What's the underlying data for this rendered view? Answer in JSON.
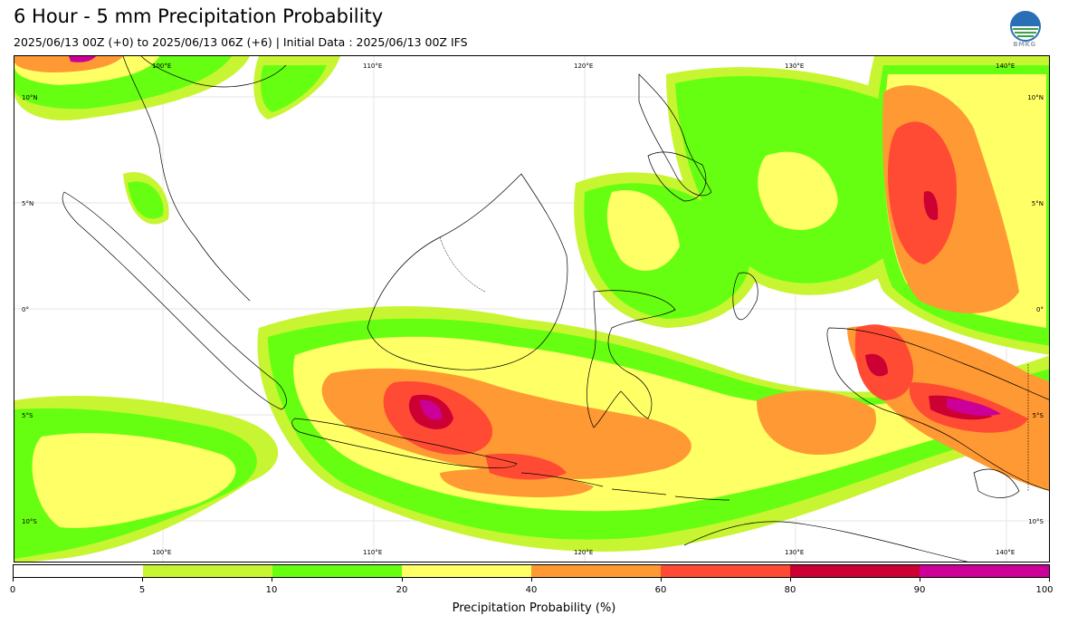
{
  "header": {
    "title": "6 Hour - 5 mm Precipitation Probability",
    "subtitle": "2025/06/13 00Z (+0) to 2025/06/13 06Z (+6) | Initial Data : 2025/06/13 00Z IFS",
    "logo_text": "BMKG"
  },
  "map": {
    "lon_labels": [
      "100°E",
      "110°E",
      "120°E",
      "130°E",
      "140°E"
    ],
    "lat_labels": [
      "10°N",
      "5°N",
      "0°",
      "5°S",
      "10°S"
    ],
    "colors": {
      "p5": "#c8f531",
      "p10": "#66ff11",
      "p20": "#ffff66",
      "p40": "#ff9933",
      "p60": "#ff4b33",
      "p80": "#cc0033",
      "p90": "#cc0099"
    }
  },
  "colorbar": {
    "label": "Precipitation Probability (%)",
    "ticks": [
      "0",
      "5",
      "10",
      "20",
      "40",
      "60",
      "80",
      "90",
      "100"
    ],
    "segments": [
      {
        "range": "0-5",
        "color": "#ffffff"
      },
      {
        "range": "5-10",
        "color": "#c8f531"
      },
      {
        "range": "10-20",
        "color": "#66ff11"
      },
      {
        "range": "20-40",
        "color": "#ffff66"
      },
      {
        "range": "40-60",
        "color": "#ff9933"
      },
      {
        "range": "60-80",
        "color": "#ff4b33"
      },
      {
        "range": "80-90",
        "color": "#cc0033"
      },
      {
        "range": "90-100",
        "color": "#cc0099"
      }
    ]
  }
}
